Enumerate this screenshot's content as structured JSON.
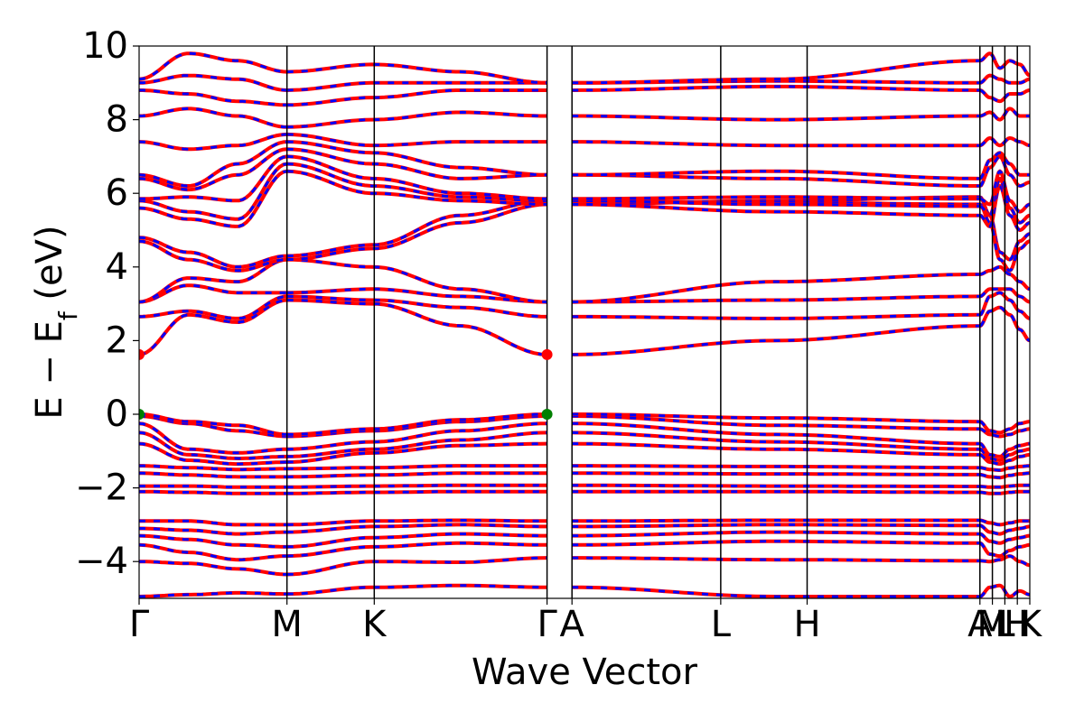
{
  "chart_data": {
    "type": "line",
    "title": "",
    "xlabel": "Wave Vector",
    "ylabel": {
      "main": "E − E",
      "subscript": "f",
      "unit": " (eV)"
    },
    "ylim": [
      -5,
      10
    ],
    "yticks": [
      -4,
      -2,
      0,
      2,
      4,
      6,
      8,
      10
    ],
    "ytick_labels": [
      "−4",
      "−2",
      "0",
      "2",
      "4",
      "6",
      "8",
      "10"
    ],
    "xlim": [
      0,
      1
    ],
    "kpoints": [
      {
        "label": "Γ",
        "x": 0.0
      },
      {
        "label": "M",
        "x": 0.166
      },
      {
        "label": "K",
        "x": 0.264
      },
      {
        "label": "Γ",
        "x": 0.458
      },
      {
        "label": "A",
        "x": 0.486
      },
      {
        "label": "L",
        "x": 0.653
      },
      {
        "label": "H",
        "x": 0.75
      },
      {
        "label": "A",
        "x": 0.944
      },
      {
        "label": "M",
        "x": 0.958
      },
      {
        "label": "L",
        "x": 0.972
      },
      {
        "label": "H",
        "x": 0.986
      },
      {
        "label": "K",
        "x": 1.0
      }
    ],
    "series": [
      {
        "color": "#ff0000",
        "style": "solid"
      },
      {
        "color": "#0000ff",
        "style": "dashed"
      }
    ],
    "markers": [
      {
        "x": 0.0,
        "y": 1.62,
        "color": "#ff0000"
      },
      {
        "x": 0.458,
        "y": 1.62,
        "color": "#ff0000"
      },
      {
        "x": 0.0,
        "y": 0.0,
        "color": "#008000"
      },
      {
        "x": 0.458,
        "y": 0.0,
        "color": "#008000"
      }
    ],
    "bands": [
      {
        "segments": [
          [
            -4.95,
            -4.9,
            -4.85,
            -4.88
          ],
          [
            -4.88,
            -4.7,
            -4.65,
            -4.7
          ],
          [
            -4.7,
            -4.95,
            -4.95
          ],
          [
            -4.95,
            -4.7,
            -4.65,
            -4.95,
            -4.8,
            -4.9
          ]
        ]
      },
      {
        "segments": [
          [
            -4.0,
            -4.05,
            -4.2,
            -4.35
          ],
          [
            -4.35,
            -4.0,
            -4.02,
            -3.9
          ],
          [
            -3.9,
            -3.95,
            -3.98
          ],
          [
            -3.98,
            -4.0,
            -3.95,
            -3.85,
            -4.0,
            -4.1
          ]
        ]
      },
      {
        "segments": [
          [
            -3.55,
            -3.75,
            -3.95,
            -3.85
          ],
          [
            -3.85,
            -3.6,
            -3.5,
            -3.55
          ],
          [
            -3.55,
            -3.45,
            -3.5
          ],
          [
            -3.5,
            -3.8,
            -3.85,
            -3.7,
            -3.6,
            -3.55
          ]
        ]
      },
      {
        "segments": [
          [
            -3.3,
            -3.4,
            -3.55,
            -3.6
          ],
          [
            -3.6,
            -3.35,
            -3.25,
            -3.3
          ],
          [
            -3.3,
            -3.2,
            -3.25
          ],
          [
            -3.25,
            -3.45,
            -3.5,
            -3.4,
            -3.35,
            -3.3
          ]
        ]
      },
      {
        "segments": [
          [
            -3.1,
            -3.15,
            -3.25,
            -3.2
          ],
          [
            -3.2,
            -3.05,
            -3.0,
            -3.05
          ],
          [
            -3.05,
            -3.0,
            -3.02
          ],
          [
            -3.02,
            -3.2,
            -3.25,
            -3.15,
            -3.1,
            -3.05
          ]
        ]
      },
      {
        "segments": [
          [
            -2.9,
            -2.9,
            -3.0,
            -3.0
          ],
          [
            -3.0,
            -2.9,
            -2.88,
            -2.9
          ],
          [
            -2.9,
            -2.88,
            -2.88
          ],
          [
            -2.88,
            -2.95,
            -3.0,
            -2.95,
            -2.9,
            -2.9
          ]
        ]
      },
      {
        "segments": [
          [
            -2.1,
            -2.12,
            -2.15,
            -2.15
          ],
          [
            -2.15,
            -2.12,
            -2.1,
            -2.1
          ],
          [
            -2.1,
            -2.1,
            -2.12
          ],
          [
            -2.12,
            -2.15,
            -2.15,
            -2.12,
            -2.1,
            -2.1
          ]
        ]
      },
      {
        "segments": [
          [
            -1.95,
            -1.95,
            -1.98,
            -1.98
          ],
          [
            -1.98,
            -1.95,
            -1.93,
            -1.93
          ],
          [
            -1.93,
            -1.95,
            -1.96
          ],
          [
            -1.96,
            -1.98,
            -1.98,
            -1.95,
            -1.93,
            -1.93
          ]
        ]
      },
      {
        "segments": [
          [
            -1.6,
            -1.65,
            -1.7,
            -1.7
          ],
          [
            -1.7,
            -1.65,
            -1.6,
            -1.6
          ],
          [
            -1.6,
            -1.62,
            -1.64
          ],
          [
            -1.64,
            -1.7,
            -1.72,
            -1.66,
            -1.62,
            -1.6
          ]
        ]
      },
      {
        "segments": [
          [
            -1.4,
            -1.45,
            -1.5,
            -1.48
          ],
          [
            -1.48,
            -1.45,
            -1.4,
            -1.4
          ],
          [
            -1.4,
            -1.42,
            -1.45
          ],
          [
            -1.45,
            -1.5,
            -1.52,
            -1.46,
            -1.42,
            -1.4
          ]
        ]
      },
      {
        "segments": [
          [
            -0.8,
            -1.25,
            -1.35,
            -1.3
          ],
          [
            -1.3,
            -1.05,
            -0.85,
            -0.8
          ],
          [
            -0.8,
            -0.95,
            -1.1
          ],
          [
            -1.1,
            -1.3,
            -1.35,
            -1.25,
            -1.15,
            -1.1
          ]
        ]
      },
      {
        "segments": [
          [
            -0.5,
            -1.1,
            -1.2,
            -1.15
          ],
          [
            -1.15,
            -0.95,
            -0.7,
            -0.5
          ],
          [
            -0.5,
            -0.75,
            -0.95
          ],
          [
            -0.95,
            -1.2,
            -1.25,
            -1.1,
            -1.0,
            -0.95
          ]
        ]
      },
      {
        "segments": [
          [
            -0.25,
            -0.95,
            -1.05,
            -0.95
          ],
          [
            -0.95,
            -0.75,
            -0.45,
            -0.25
          ],
          [
            -0.25,
            -0.55,
            -0.8
          ],
          [
            -0.8,
            -1.1,
            -1.15,
            -0.95,
            -0.85,
            -0.8
          ]
        ]
      },
      {
        "segments": [
          [
            -0.05,
            -0.25,
            -0.45,
            -0.6
          ],
          [
            -0.6,
            -0.45,
            -0.2,
            -0.05
          ],
          [
            -0.05,
            -0.3,
            -0.4
          ],
          [
            -0.4,
            -0.55,
            -0.6,
            -0.55,
            -0.45,
            -0.4
          ]
        ]
      },
      {
        "segments": [
          [
            0.0,
            -0.2,
            -0.3,
            -0.55
          ],
          [
            -0.55,
            -0.4,
            -0.15,
            0.0
          ],
          [
            0.0,
            -0.1,
            -0.2
          ],
          [
            -0.2,
            -0.45,
            -0.5,
            -0.4,
            -0.25,
            -0.2
          ]
        ]
      },
      {
        "segments": [
          [
            1.62,
            2.7,
            2.5,
            3.1
          ],
          [
            3.1,
            3.0,
            2.4,
            1.62
          ],
          [
            1.62,
            2.0,
            2.4
          ],
          [
            2.4,
            2.8,
            2.9,
            2.7,
            2.3,
            2.0
          ]
        ]
      },
      {
        "segments": [
          [
            2.65,
            2.8,
            2.6,
            3.2
          ],
          [
            3.2,
            3.1,
            2.9,
            2.65
          ],
          [
            2.65,
            2.6,
            2.7
          ],
          [
            2.7,
            3.2,
            3.3,
            3.1,
            2.8,
            2.6
          ]
        ]
      },
      {
        "segments": [
          [
            3.05,
            3.5,
            3.3,
            3.3
          ],
          [
            3.3,
            3.4,
            3.2,
            3.05
          ],
          [
            3.05,
            3.1,
            3.2
          ],
          [
            3.2,
            3.4,
            3.4,
            3.4,
            3.2,
            3.05
          ]
        ]
      },
      {
        "segments": [
          [
            3.05,
            3.7,
            3.6,
            4.2
          ],
          [
            4.2,
            4.0,
            3.4,
            3.05
          ],
          [
            3.05,
            3.6,
            3.8
          ],
          [
            3.8,
            3.9,
            4.0,
            3.8,
            3.6,
            3.4
          ]
        ]
      },
      {
        "segments": [
          [
            4.7,
            4.2,
            3.9,
            4.2
          ],
          [
            4.2,
            4.5,
            5.2,
            5.7
          ],
          [
            5.7,
            5.8,
            5.9
          ],
          [
            5.9,
            5.4,
            4.4,
            4.2,
            4.7,
            4.9
          ]
        ]
      },
      {
        "segments": [
          [
            4.8,
            4.4,
            4.0,
            4.3
          ],
          [
            4.3,
            4.6,
            5.4,
            5.8
          ],
          [
            5.8,
            5.75,
            5.7
          ],
          [
            5.7,
            5.2,
            4.2,
            3.9,
            4.5,
            4.7
          ]
        ]
      },
      {
        "segments": [
          [
            5.6,
            5.3,
            5.1,
            6.6
          ],
          [
            6.6,
            6.0,
            5.8,
            5.7
          ],
          [
            5.7,
            5.5,
            5.4
          ],
          [
            5.4,
            5.1,
            6.2,
            5.4,
            5.0,
            5.2
          ]
        ]
      },
      {
        "segments": [
          [
            5.8,
            5.5,
            5.3,
            6.8
          ],
          [
            6.8,
            6.2,
            5.9,
            5.8
          ],
          [
            5.8,
            5.7,
            5.65
          ],
          [
            5.65,
            5.4,
            6.4,
            5.6,
            5.2,
            5.4
          ]
        ]
      },
      {
        "segments": [
          [
            5.85,
            5.9,
            5.8,
            7.0
          ],
          [
            7.0,
            6.4,
            6.0,
            5.85
          ],
          [
            5.85,
            5.9,
            5.85
          ],
          [
            5.85,
            5.7,
            6.6,
            5.8,
            5.5,
            5.7
          ]
        ]
      },
      {
        "segments": [
          [
            6.4,
            6.1,
            6.5,
            7.2
          ],
          [
            7.2,
            6.8,
            6.4,
            6.5
          ],
          [
            6.5,
            6.4,
            6.2
          ],
          [
            6.2,
            6.7,
            7.0,
            6.5,
            6.2,
            6.3
          ]
        ]
      },
      {
        "segments": [
          [
            6.5,
            6.2,
            6.8,
            7.4
          ],
          [
            7.4,
            7.1,
            6.7,
            6.5
          ],
          [
            6.5,
            6.6,
            6.4
          ],
          [
            6.4,
            6.9,
            7.1,
            6.8,
            6.5,
            6.5
          ]
        ]
      },
      {
        "segments": [
          [
            7.4,
            7.2,
            7.3,
            7.6
          ],
          [
            7.6,
            7.3,
            7.4,
            7.4
          ],
          [
            7.4,
            7.3,
            7.3
          ],
          [
            7.3,
            7.5,
            7.3,
            7.5,
            7.4,
            7.3
          ]
        ]
      },
      {
        "segments": [
          [
            8.1,
            8.3,
            8.1,
            7.8
          ],
          [
            7.8,
            8.0,
            8.2,
            8.1
          ],
          [
            8.1,
            8.0,
            8.1
          ],
          [
            8.1,
            8.2,
            8.0,
            8.3,
            8.1,
            8.1
          ]
        ]
      },
      {
        "segments": [
          [
            8.8,
            8.7,
            8.5,
            8.4
          ],
          [
            8.4,
            8.6,
            8.8,
            8.8
          ],
          [
            8.8,
            8.9,
            8.8
          ],
          [
            8.8,
            8.6,
            8.5,
            8.7,
            8.7,
            8.8
          ]
        ]
      },
      {
        "segments": [
          [
            9.0,
            9.2,
            9.1,
            8.8
          ],
          [
            8.8,
            9.0,
            9.0,
            9.0
          ],
          [
            9.0,
            9.05,
            9.0
          ],
          [
            9.0,
            9.2,
            9.1,
            9.0,
            9.0,
            9.1
          ]
        ]
      },
      {
        "segments": [
          [
            9.1,
            9.8,
            9.6,
            9.3
          ],
          [
            9.3,
            9.5,
            9.3,
            9.0
          ],
          [
            9.0,
            9.1,
            9.6
          ],
          [
            9.6,
            9.8,
            9.4,
            9.6,
            9.5,
            9.2
          ]
        ]
      }
    ]
  }
}
